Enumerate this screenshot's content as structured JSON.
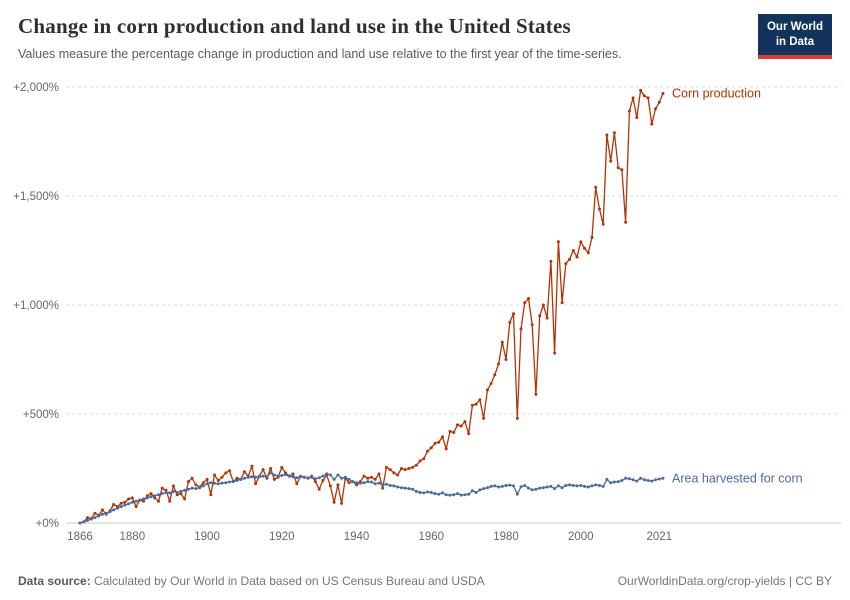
{
  "header": {
    "title": "Change in corn production and land use in the United States",
    "subtitle": "Values measure the percentage change in production and land use relative to the first year of the time-series.",
    "logo": {
      "line1": "Our World",
      "line2": "in Data"
    }
  },
  "footer": {
    "source_label": "Data source:",
    "source_text": " Calculated by Our World in Data based on US Census Bureau and USDA",
    "link_text": "OurWorldinData.org/crop-yields | CC BY"
  },
  "colors": {
    "corn_production": "#B13507",
    "area_harvested": "#4C6A9C",
    "gridline": "#dcdcdc",
    "axis_text": "#666666",
    "logo_bg": "#12335c",
    "logo_accent": "#dc3d33"
  },
  "chart_data": {
    "type": "line",
    "title": "Change in corn production and land use in the United States",
    "xlabel": "",
    "ylabel": "",
    "xlim": [
      1866,
      2022
    ],
    "ylim": [
      0,
      2000
    ],
    "grid": "dashed-horizontal",
    "legend_position": "end-of-line-labels",
    "y_ticks": [
      {
        "value": 0,
        "label": "+0%"
      },
      {
        "value": 500,
        "label": "+500%"
      },
      {
        "value": 1000,
        "label": "+1,000%"
      },
      {
        "value": 1500,
        "label": "+1,500%"
      },
      {
        "value": 2000,
        "label": "+2,000%"
      }
    ],
    "x_ticks": [
      {
        "value": 1866,
        "label": "1866"
      },
      {
        "value": 1880,
        "label": "1880"
      },
      {
        "value": 1900,
        "label": "1900"
      },
      {
        "value": 1920,
        "label": "1920"
      },
      {
        "value": 1940,
        "label": "1940"
      },
      {
        "value": 1960,
        "label": "1960"
      },
      {
        "value": 1980,
        "label": "1980"
      },
      {
        "value": 2000,
        "label": "2000"
      },
      {
        "value": 2021,
        "label": "2021"
      }
    ],
    "x": [
      1866,
      1867,
      1868,
      1869,
      1870,
      1871,
      1872,
      1873,
      1874,
      1875,
      1876,
      1877,
      1878,
      1879,
      1880,
      1881,
      1882,
      1883,
      1884,
      1885,
      1886,
      1887,
      1888,
      1889,
      1890,
      1891,
      1892,
      1893,
      1894,
      1895,
      1896,
      1897,
      1898,
      1899,
      1900,
      1901,
      1902,
      1903,
      1904,
      1905,
      1906,
      1907,
      1908,
      1909,
      1910,
      1911,
      1912,
      1913,
      1914,
      1915,
      1916,
      1917,
      1918,
      1919,
      1920,
      1921,
      1922,
      1923,
      1924,
      1925,
      1926,
      1927,
      1928,
      1929,
      1930,
      1931,
      1932,
      1933,
      1934,
      1935,
      1936,
      1937,
      1938,
      1939,
      1940,
      1941,
      1942,
      1943,
      1944,
      1945,
      1946,
      1947,
      1948,
      1949,
      1950,
      1951,
      1952,
      1953,
      1954,
      1955,
      1956,
      1957,
      1958,
      1959,
      1960,
      1961,
      1962,
      1963,
      1964,
      1965,
      1966,
      1967,
      1968,
      1969,
      1970,
      1971,
      1972,
      1973,
      1974,
      1975,
      1976,
      1977,
      1978,
      1979,
      1980,
      1981,
      1982,
      1983,
      1984,
      1985,
      1986,
      1987,
      1988,
      1989,
      1990,
      1991,
      1992,
      1993,
      1994,
      1995,
      1996,
      1997,
      1998,
      1999,
      2000,
      2001,
      2002,
      2003,
      2004,
      2005,
      2006,
      2007,
      2008,
      2009,
      2010,
      2011,
      2012,
      2013,
      2014,
      2015,
      2016,
      2017,
      2018,
      2019,
      2020,
      2021,
      2022
    ],
    "series": [
      {
        "name": "Corn production",
        "color": "#B13507",
        "values": [
          0,
          5,
          25,
          20,
          45,
          35,
          60,
          40,
          55,
          85,
          75,
          90,
          95,
          110,
          115,
          75,
          105,
          100,
          125,
          135,
          115,
          100,
          160,
          150,
          100,
          170,
          130,
          135,
          110,
          190,
          205,
          175,
          165,
          185,
          200,
          130,
          220,
          195,
          210,
          230,
          240,
          190,
          205,
          200,
          235,
          215,
          260,
          180,
          215,
          245,
          205,
          250,
          200,
          210,
          255,
          230,
          215,
          225,
          180,
          215,
          210,
          205,
          215,
          190,
          155,
          195,
          220,
          170,
          95,
          175,
          90,
          205,
          185,
          190,
          175,
          190,
          215,
          205,
          210,
          200,
          225,
          160,
          255,
          245,
          230,
          220,
          250,
          245,
          250,
          255,
          265,
          285,
          295,
          330,
          345,
          365,
          370,
          395,
          340,
          420,
          415,
          450,
          445,
          465,
          410,
          540,
          545,
          565,
          480,
          610,
          640,
          680,
          730,
          830,
          750,
          920,
          960,
          480,
          890,
          1010,
          1030,
          910,
          590,
          950,
          1000,
          940,
          1200,
          780,
          1290,
          1010,
          1190,
          1210,
          1250,
          1220,
          1290,
          1260,
          1240,
          1310,
          1540,
          1440,
          1370,
          1780,
          1660,
          1790,
          1630,
          1620,
          1380,
          1890,
          1950,
          1860,
          1985,
          1960,
          1950,
          1830,
          1900,
          1930,
          1970
        ]
      },
      {
        "name": "Area harvested for corn",
        "color": "#4C6A9C",
        "values": [
          0,
          5,
          12,
          18,
          25,
          32,
          40,
          45,
          52,
          60,
          68,
          75,
          82,
          88,
          95,
          100,
          105,
          110,
          115,
          120,
          125,
          130,
          135,
          140,
          138,
          145,
          140,
          145,
          150,
          155,
          160,
          158,
          162,
          170,
          180,
          185,
          182,
          180,
          183,
          185,
          188,
          190,
          195,
          200,
          205,
          210,
          212,
          210,
          212,
          215,
          212,
          230,
          220,
          215,
          218,
          222,
          215,
          212,
          208,
          212,
          210,
          207,
          210,
          203,
          208,
          215,
          225,
          220,
          200,
          220,
          205,
          210,
          200,
          190,
          185,
          182,
          185,
          190,
          188,
          180,
          183,
          175,
          178,
          172,
          170,
          165,
          162,
          160,
          158,
          155,
          145,
          140,
          138,
          142,
          140,
          135,
          132,
          138,
          130,
          128,
          130,
          135,
          128,
          130,
          132,
          148,
          140,
          152,
          158,
          162,
          168,
          170,
          165,
          168,
          172,
          174,
          170,
          132,
          166,
          172,
          160,
          152,
          155,
          160,
          162,
          165,
          168,
          158,
          170,
          162,
          172,
          175,
          172,
          170,
          172,
          168,
          165,
          170,
          175,
          172,
          168,
          200,
          185,
          188,
          190,
          195,
          205,
          203,
          198,
          192,
          205,
          198,
          195,
          192,
          198,
          202,
          205
        ]
      }
    ]
  }
}
